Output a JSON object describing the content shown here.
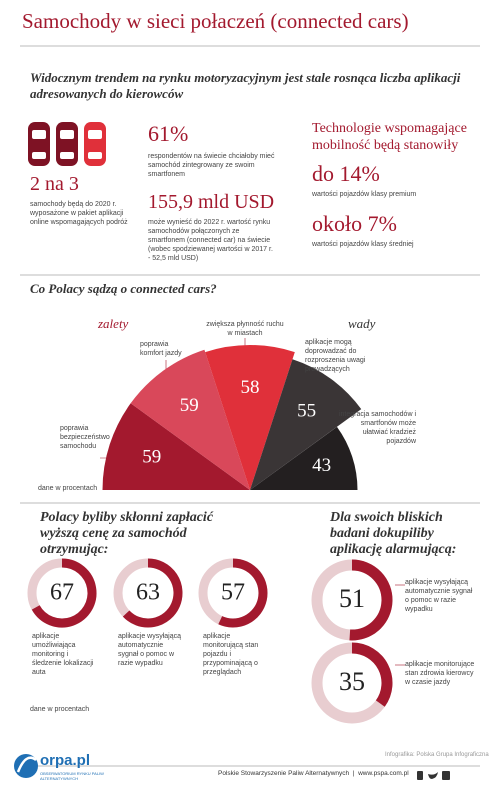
{
  "header": {
    "title": "Samochody w sieci połaczeń (connected cars)"
  },
  "intro": "Widocznym trendem na rynku motoryzacyjnym jest stale rosnąca liczba aplikacji adresowanych do kierowców",
  "cars_stat": {
    "value": "2 na 3",
    "text": "samochody będą do 2020 r. wyposażone w pakiet aplikacji online wspomagających podróż"
  },
  "stats": [
    {
      "value": "61%",
      "text": "respondentów na świecie chciałoby mieć samochód zintegrowany ze swoim smartfonem"
    },
    {
      "value": "155,9 mld USD",
      "text": "może wynieść do 2022 r. wartość rynku samochodów połączonych ze smartfonem (connected car) na świecie (wobec spodziewanej wartości w 2017 r. - 52,5 mld USD)"
    }
  ],
  "technology": {
    "title": "Technologie wspomagające mobilność będą stanowiły",
    "items": [
      {
        "value": "do 14%",
        "text": "wartości pojazdów klasy premium"
      },
      {
        "value": "około 7%",
        "text": "wartości pojazdów klasy średniej"
      }
    ]
  },
  "opinions": {
    "title": "Co Polacy sądzą o connected cars?",
    "pros_label": "zalety",
    "cons_label": "wady",
    "segments": [
      {
        "label": "poprawia bezpieczeństwo samochodu",
        "value": 59,
        "color": "#a3192e"
      },
      {
        "label": "poprawia komfort jazdy",
        "value": 59,
        "color": "#d9485a"
      },
      {
        "label": "zwiększa płynność ruchu w miastach",
        "value": 58,
        "color": "#e0303a"
      },
      {
        "label": "aplikacje mogą doprowadzać do rozproszenia uwagi prowadzących",
        "value": 55,
        "color": "#3a3536"
      },
      {
        "label": "integracja samochodów i smartfonów może ułatwiać kradzież pojazdów",
        "value": 43,
        "color": "#231f20"
      }
    ],
    "note": "dane w procentach"
  },
  "pay_more": {
    "title": "Polacy byliby skłonni zapłacić wyższą cenę za samochód otrzymując:",
    "items": [
      {
        "value": 67,
        "label": "aplikacje umożliwiająca monitoring i śledzenie lokalizacji auta"
      },
      {
        "value": 63,
        "label": "aplikacje wysyłającą automatycznie sygnał o pomoc w razie wypadku"
      },
      {
        "value": 57,
        "label": "aplikacje monitorującą stan pojazdu i przypominającą o przeglądach"
      }
    ],
    "note": "dane w procentach"
  },
  "relatives": {
    "title": "Dla swoich bliskich badani dokupiliby aplikację alarmującą:",
    "items": [
      {
        "value": 51,
        "label": "aplikacje wysyłającą automatycznie sygnał o pomoc w razie wypadku"
      },
      {
        "value": 35,
        "label": "aplikacje monitorujące stan zdrowia kierowcy w czasie jazdy"
      }
    ]
  },
  "footer": {
    "credit": "Infografika: Polska Grupa Infograficzna",
    "logo": "orpa.pl",
    "logo_sub": "OBSERWATORIUM RYNKU PALIW ALTERNATYWNYCH",
    "organization": "Polskie Stowarzyszenie Paliw Alternatywnych",
    "separator": "|",
    "website": "www.pspa.com.pl"
  }
}
